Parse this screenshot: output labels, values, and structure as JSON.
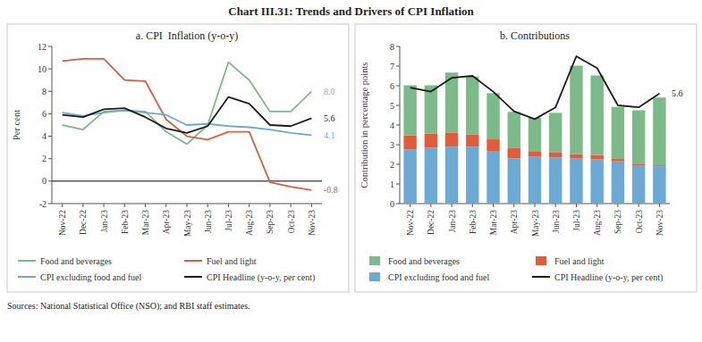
{
  "title": "Chart III.31: Trends and Drivers of CPI Inflation",
  "source": "Sources: National Statistical Office (NSO); and RBI staff estimates.",
  "chart_data": [
    {
      "type": "line",
      "title": "a. CPI  Inflation (y-o-y)",
      "ylabel": "Per cent",
      "categories": [
        "Nov-22",
        "Dec-22",
        "Jan-23",
        "Feb-23",
        "Mar-23",
        "Apr-23",
        "May-23",
        "Jun-23",
        "Jul-23",
        "Aug-23",
        "Sep-23",
        "Oct-23",
        "Nov-23"
      ],
      "series": [
        {
          "name": "Food and beverages",
          "color": "#7dba8a",
          "values": [
            5.0,
            4.6,
            6.2,
            6.3,
            6.2,
            4.4,
            3.3,
            5.0,
            10.6,
            9.0,
            6.2,
            6.2,
            8.0
          ]
        },
        {
          "name": "Fuel and light",
          "color": "#e05c3a",
          "values": [
            10.7,
            10.9,
            10.9,
            9.0,
            8.9,
            5.5,
            4.0,
            3.7,
            4.4,
            4.4,
            -0.1,
            -0.5,
            -0.8
          ]
        },
        {
          "name": "CPI excluding food and fuel",
          "color": "#6aaad4",
          "values": [
            6.1,
            5.8,
            6.1,
            6.3,
            6.1,
            5.9,
            5.0,
            5.1,
            4.9,
            4.8,
            4.6,
            4.3,
            4.1
          ]
        },
        {
          "name": "CPI Headline (y-o-y, per cent)",
          "color": "#1a1a1a",
          "values": [
            5.9,
            5.7,
            6.4,
            6.5,
            5.7,
            4.7,
            4.3,
            4.9,
            7.5,
            6.9,
            5.0,
            4.9,
            5.6
          ]
        }
      ],
      "ylim": [
        -2,
        12
      ],
      "yticks": [
        -2,
        0,
        2,
        4,
        6,
        8,
        10,
        12
      ],
      "grid": false,
      "legend": "bottom",
      "annotations": [
        {
          "text": "8.0",
          "x": "Nov-23",
          "y": 8.0,
          "color": "#7dba8a"
        },
        {
          "text": "-0.8",
          "x": "Nov-23",
          "y": -0.8,
          "color": "#e05c3a"
        },
        {
          "text": "4.1",
          "x": "Nov-23",
          "y": 4.1,
          "color": "#6aaad4"
        },
        {
          "text": "5.6",
          "x": "Nov-23",
          "y": 5.6,
          "color": "#1a1a1a"
        }
      ]
    },
    {
      "type": "bar",
      "stacked": true,
      "title": "b. Contributions",
      "ylabel": "Contribution in percentage points",
      "categories": [
        "Nov-22",
        "Dec-22",
        "Jan-23",
        "Feb-23",
        "Mar-23",
        "Apr-23",
        "May-23",
        "Jun-23",
        "Jul-23",
        "Aug-23",
        "Sep-23",
        "Oct-23",
        "Nov-23"
      ],
      "series": [
        {
          "name": "Food and beverages",
          "color": "#7dba8a",
          "values": [
            2.55,
            2.45,
            3.05,
            2.95,
            2.35,
            1.85,
            1.7,
            2.0,
            4.5,
            4.05,
            2.65,
            2.75,
            3.45
          ]
        },
        {
          "name": "Fuel and light",
          "color": "#e05c3a",
          "values": [
            0.72,
            0.72,
            0.72,
            0.62,
            0.62,
            0.52,
            0.27,
            0.27,
            0.22,
            0.22,
            0.12,
            0.05,
            0.05
          ]
        },
        {
          "name": "CPI excluding food and fuel",
          "color": "#6aaad4",
          "values": [
            2.75,
            2.85,
            2.9,
            2.9,
            2.65,
            2.3,
            2.4,
            2.35,
            2.3,
            2.25,
            2.15,
            1.95,
            1.9
          ]
        },
        {
          "name": "CPI Headline (y-o-y, per cent)",
          "type": "line",
          "color": "#1a1a1a",
          "values": [
            5.9,
            5.7,
            6.4,
            6.5,
            5.7,
            4.7,
            4.3,
            4.9,
            7.5,
            6.9,
            5.0,
            4.9,
            5.6
          ]
        }
      ],
      "ylim": [
        0,
        8
      ],
      "yticks": [
        0,
        1,
        2,
        3,
        4,
        5,
        6,
        7,
        8
      ],
      "grid": false,
      "legend": "bottom",
      "annotations": [
        {
          "text": "5.6",
          "x": "Nov-23",
          "y": 5.6,
          "color": "#1a1a1a"
        }
      ]
    }
  ]
}
